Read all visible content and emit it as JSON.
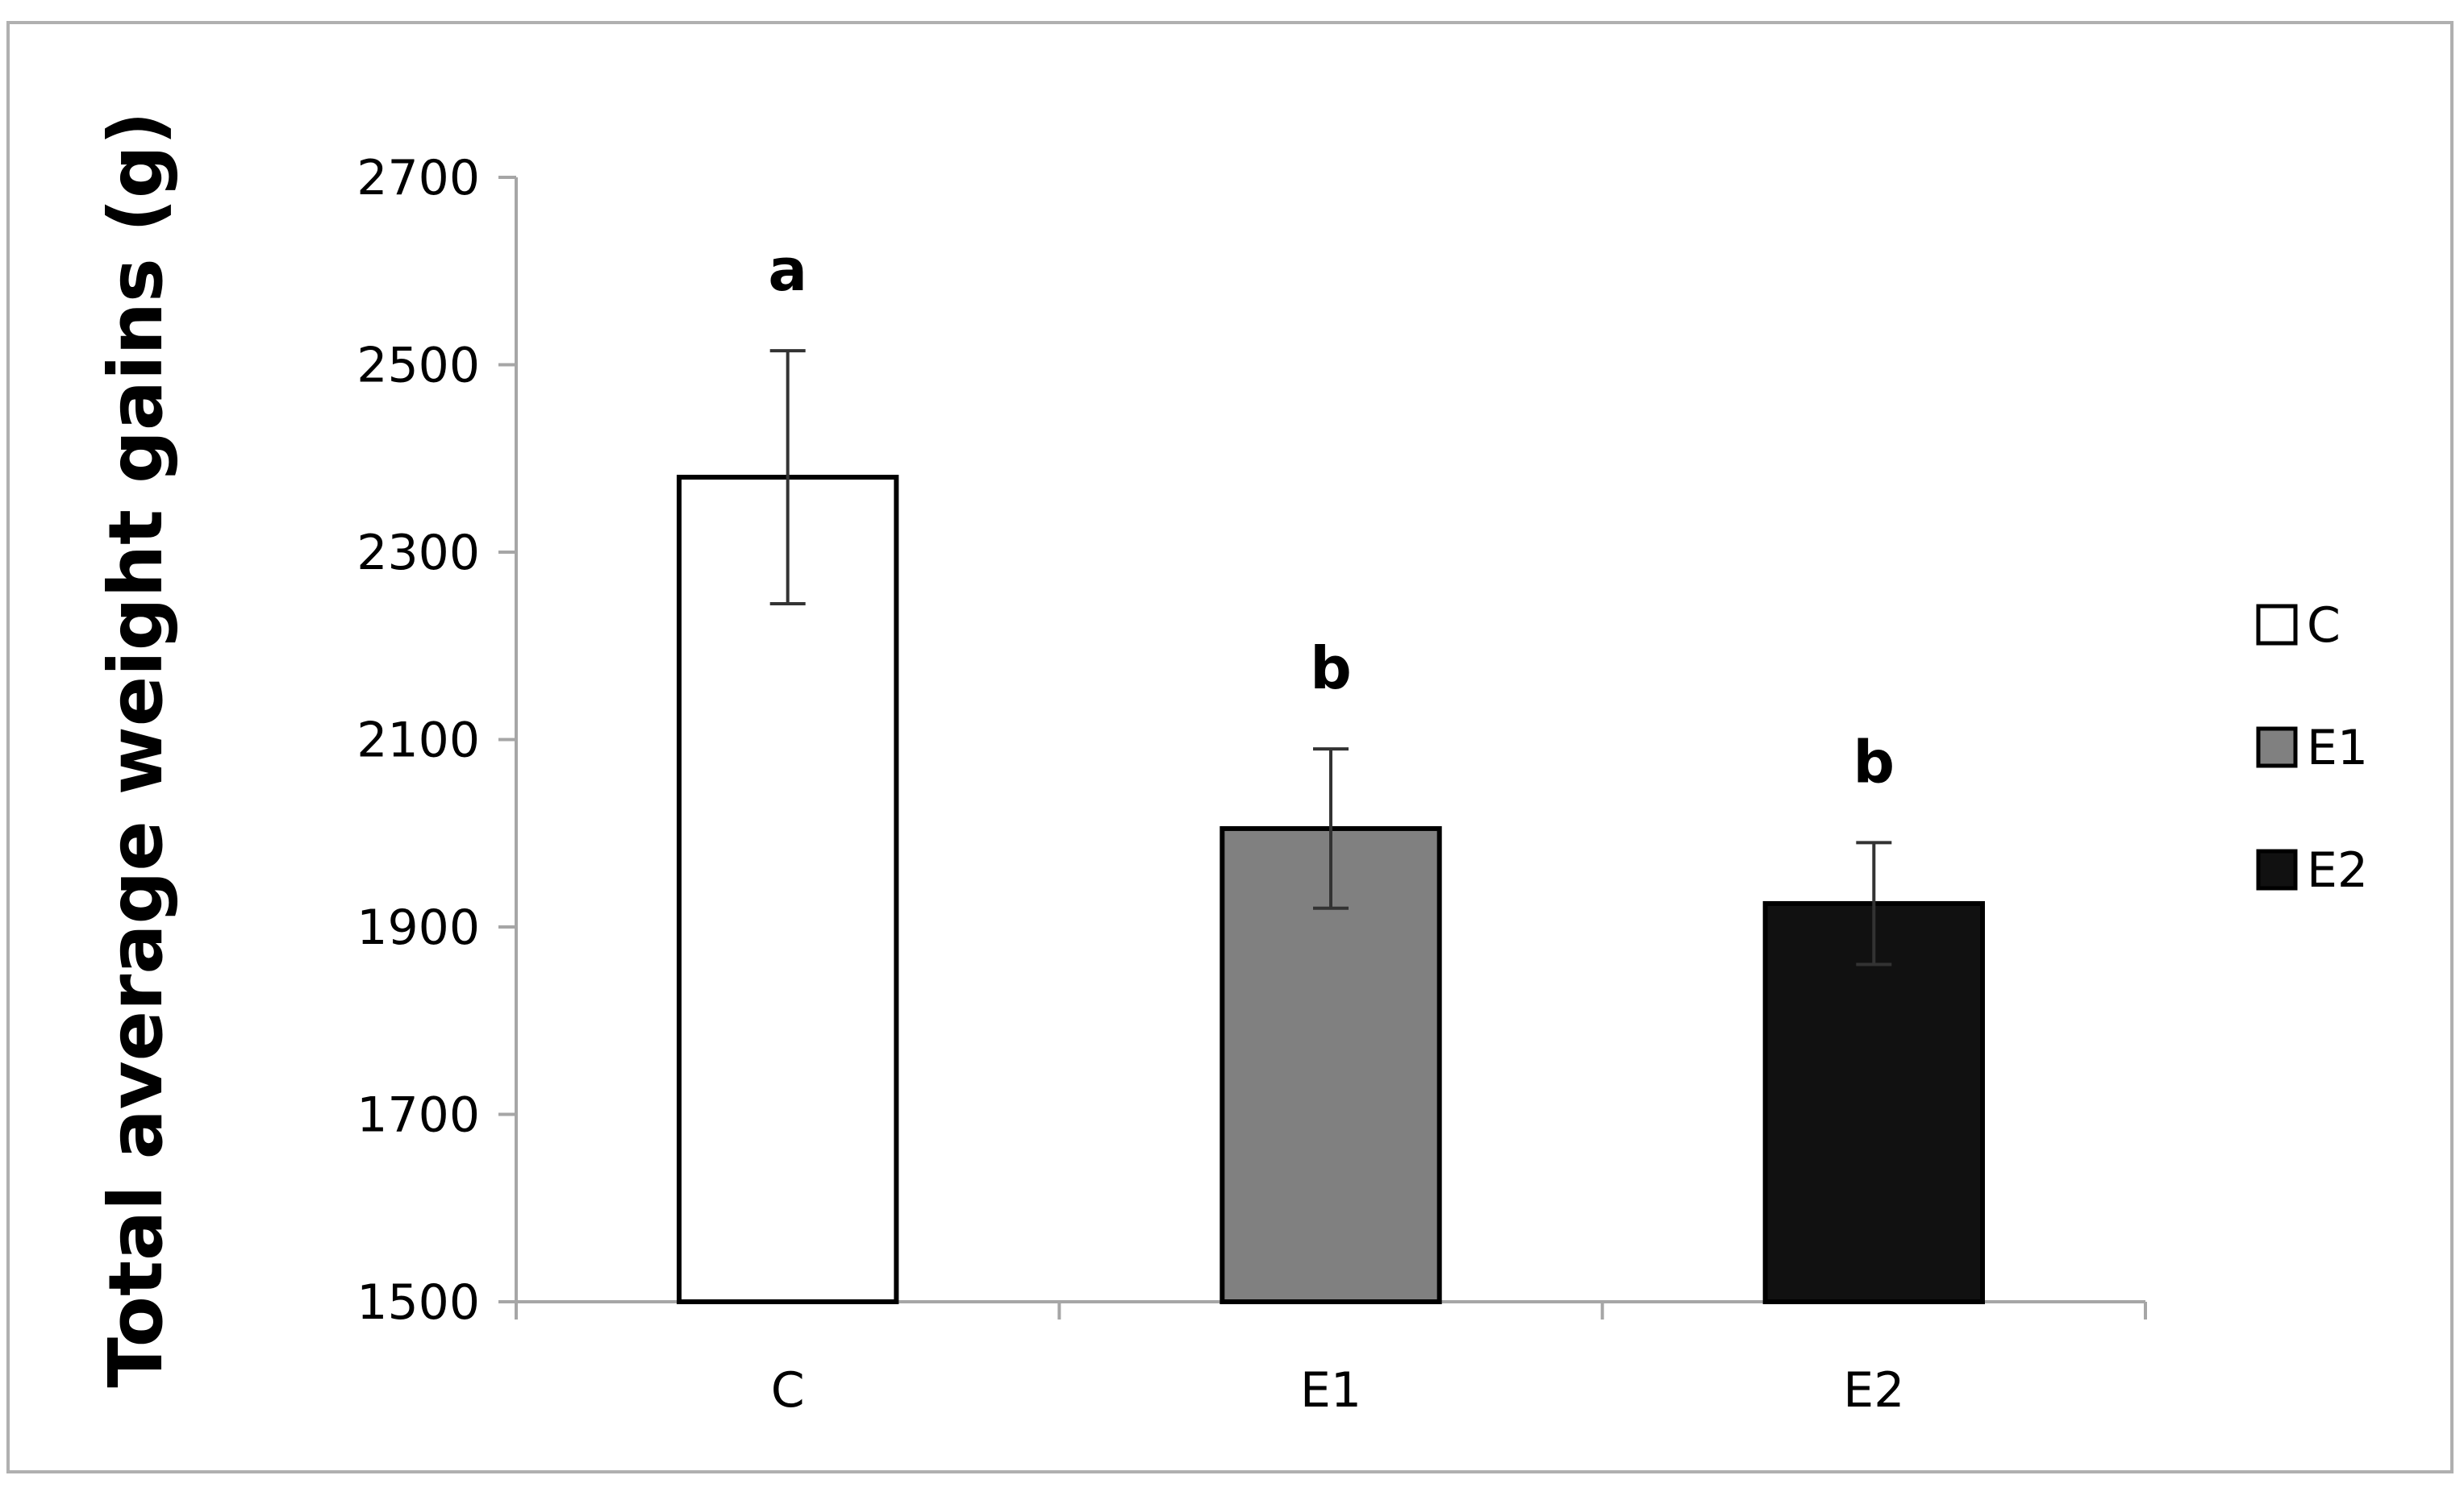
{
  "chart_data": {
    "type": "bar",
    "title": "",
    "xlabel": "",
    "ylabel": "Total average weight gains (g)",
    "ylim": [
      1500,
      2700
    ],
    "yticks": [
      "1500",
      "1700",
      "1900",
      "2100",
      "2300",
      "2500",
      "2700"
    ],
    "categories": [
      "C",
      "E1",
      "E2"
    ],
    "values": [
      2380,
      2005,
      1925
    ],
    "error_upper": [
      2515,
      2090,
      1990
    ],
    "error_lower": [
      2245,
      1920,
      1860
    ],
    "significance": [
      "a",
      "b",
      "b"
    ],
    "grid": false,
    "legend_placement": "right",
    "legend": [
      "C",
      "E1",
      "E2"
    ],
    "colors": [
      "#ffffff",
      "#808080",
      "#111111"
    ]
  }
}
